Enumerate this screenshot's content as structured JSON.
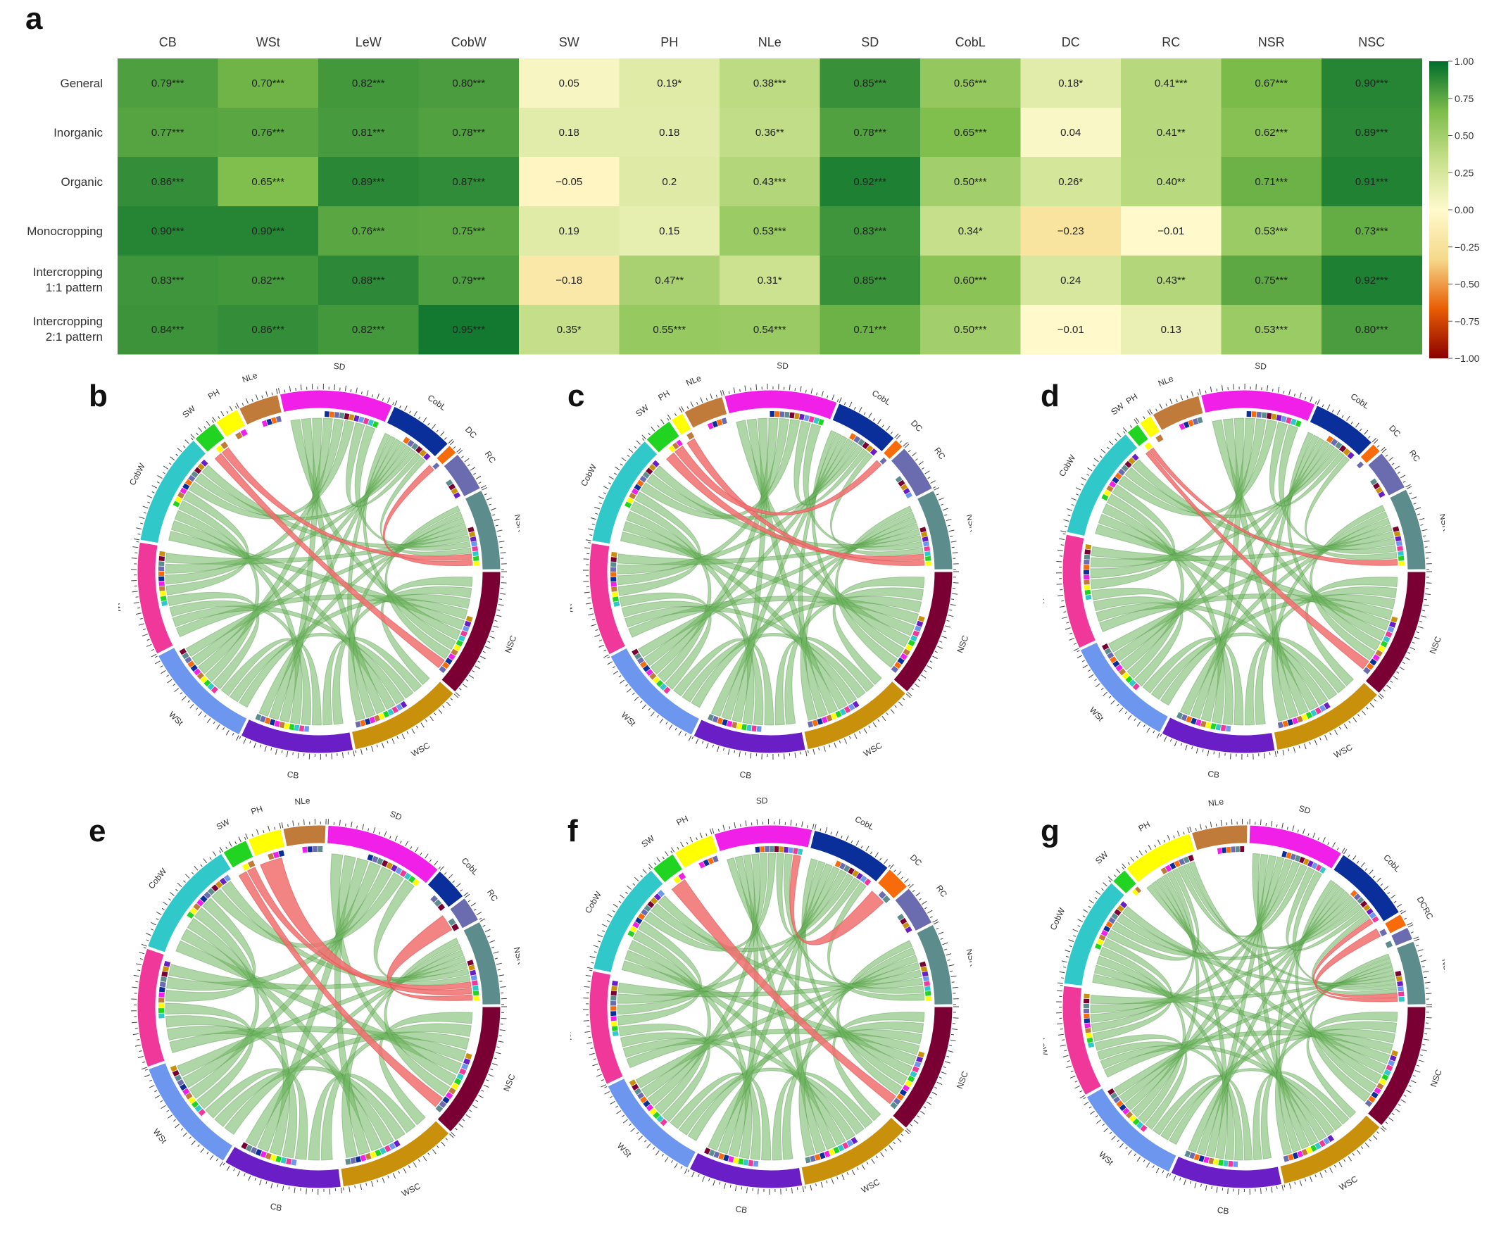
{
  "panel_labels": {
    "a": "a",
    "b": "b",
    "c": "c",
    "d": "d",
    "e": "e",
    "f": "f",
    "g": "g"
  },
  "chart_data": [
    {
      "type": "heatmap",
      "panel": "a",
      "title": "",
      "columns": [
        "CB",
        "WSt",
        "LeW",
        "CobW",
        "SW",
        "PH",
        "NLe",
        "SD",
        "CobL",
        "DC",
        "RC",
        "NSR",
        "NSC"
      ],
      "rows": [
        {
          "label": [
            "General"
          ],
          "values": [
            0.79,
            0.7,
            0.82,
            0.8,
            0.05,
            0.19,
            0.38,
            0.85,
            0.56,
            0.18,
            0.41,
            0.67,
            0.9
          ],
          "text": [
            "0.79***",
            "0.70***",
            "0.82***",
            "0.80***",
            "0.05",
            "0.19*",
            "0.38***",
            "0.85***",
            "0.56***",
            "0.18*",
            "0.41***",
            "0.67***",
            "0.90***"
          ]
        },
        {
          "label": [
            "Inorganic"
          ],
          "values": [
            0.77,
            0.76,
            0.81,
            0.78,
            0.18,
            0.18,
            0.36,
            0.78,
            0.65,
            0.04,
            0.41,
            0.62,
            0.89
          ],
          "text": [
            "0.77***",
            "0.76***",
            "0.81***",
            "0.78***",
            "0.18",
            "0.18",
            "0.36**",
            "0.78***",
            "0.65***",
            "0.04",
            "0.41**",
            "0.62***",
            "0.89***"
          ]
        },
        {
          "label": [
            "Organic"
          ],
          "values": [
            0.86,
            0.65,
            0.89,
            0.87,
            -0.05,
            0.2,
            0.43,
            0.92,
            0.5,
            0.26,
            0.4,
            0.71,
            0.91
          ],
          "text": [
            "0.86***",
            "0.65***",
            "0.89***",
            "0.87***",
            "−0.05",
            "0.2",
            "0.43***",
            "0.92***",
            "0.50***",
            "0.26*",
            "0.40**",
            "0.71***",
            "0.91***"
          ]
        },
        {
          "label": [
            "Monocropping"
          ],
          "values": [
            0.9,
            0.9,
            0.76,
            0.75,
            0.19,
            0.15,
            0.53,
            0.83,
            0.34,
            -0.23,
            -0.01,
            0.53,
            0.73
          ],
          "text": [
            "0.90***",
            "0.90***",
            "0.76***",
            "0.75***",
            "0.19",
            "0.15",
            "0.53***",
            "0.83***",
            "0.34*",
            "−0.23",
            "−0.01",
            "0.53***",
            "0.73***"
          ]
        },
        {
          "label": [
            "Intercropping",
            "1:1 pattern"
          ],
          "values": [
            0.83,
            0.82,
            0.88,
            0.79,
            -0.18,
            0.47,
            0.31,
            0.85,
            0.6,
            0.24,
            0.43,
            0.75,
            0.92
          ],
          "text": [
            "0.83***",
            "0.82***",
            "0.88***",
            "0.79***",
            "−0.18",
            "0.47**",
            "0.31*",
            "0.85***",
            "0.60***",
            "0.24",
            "0.43**",
            "0.75***",
            "0.92***"
          ]
        },
        {
          "label": [
            "Intercropping",
            "2:1 pattern"
          ],
          "values": [
            0.84,
            0.86,
            0.82,
            0.95,
            0.35,
            0.55,
            0.54,
            0.71,
            0.5,
            -0.01,
            0.13,
            0.53,
            0.8
          ],
          "text": [
            "0.84***",
            "0.86***",
            "0.82***",
            "0.95***",
            "0.35*",
            "0.55***",
            "0.54***",
            "0.71***",
            "0.50***",
            "−0.01",
            "0.13",
            "0.53***",
            "0.80***"
          ]
        }
      ],
      "colorbar": {
        "range": [
          -1,
          1
        ],
        "ticks": [
          1.0,
          0.75,
          0.5,
          0.25,
          0.0,
          -0.25,
          -0.5,
          -0.75,
          -1.0
        ],
        "tick_labels": [
          "1.00",
          "0.75",
          "0.50",
          "0.25",
          "0.00",
          "−0.25",
          "−0.50",
          "−0.75",
          "−1.00"
        ],
        "colors": [
          "#8b0000",
          "#e85d04",
          "#f5d98b",
          "#fffacd",
          "#c8e08c",
          "#7cbc4a",
          "#006d2c"
        ]
      }
    },
    {
      "type": "chord",
      "panel": "b",
      "sectors": [
        {
          "name": "NSC",
          "size": 8,
          "color": "#7a0033"
        },
        {
          "name": "WSC",
          "size": 7,
          "color": "#c9900c"
        },
        {
          "name": "CB",
          "size": 7,
          "color": "#6a1fc6"
        },
        {
          "name": "WSt",
          "size": 7,
          "color": "#6d97ee"
        },
        {
          "name": "LeW",
          "size": 7,
          "color": "#f0389a"
        },
        {
          "name": "CobW",
          "size": 7,
          "color": "#30c8c8"
        },
        {
          "name": "SW",
          "size": 1.5,
          "color": "#22d422"
        },
        {
          "name": "PH",
          "size": 1.5,
          "color": "#ffff00"
        },
        {
          "name": "NLe",
          "size": 2.5,
          "color": "#c07a3a"
        },
        {
          "name": "SD",
          "size": 7,
          "color": "#f020e8"
        },
        {
          "name": "CobL",
          "size": 4,
          "color": "#0a2f9a"
        },
        {
          "name": "DC",
          "size": 0.6,
          "color": "#f76b0a"
        },
        {
          "name": "RC",
          "size": 2.5,
          "color": "#6b6bb0"
        },
        {
          "name": "NSR",
          "size": 5,
          "color": "#5c8c8c"
        }
      ],
      "negative_links": [
        [
          "SW",
          "NSC"
        ],
        [
          "SW",
          "NSR"
        ],
        [
          "DC",
          "NSR"
        ]
      ]
    },
    {
      "type": "chord",
      "panel": "c",
      "sectors": [
        {
          "name": "NSC",
          "size": 8,
          "color": "#7a0033"
        },
        {
          "name": "WSC",
          "size": 7,
          "color": "#c9900c"
        },
        {
          "name": "CB",
          "size": 7,
          "color": "#6a1fc6"
        },
        {
          "name": "WSt",
          "size": 7,
          "color": "#6d97ee"
        },
        {
          "name": "LeW",
          "size": 7,
          "color": "#f0389a"
        },
        {
          "name": "CobW",
          "size": 7,
          "color": "#30c8c8"
        },
        {
          "name": "SW",
          "size": 1.8,
          "color": "#22d422"
        },
        {
          "name": "PH",
          "size": 0.8,
          "color": "#ffff00"
        },
        {
          "name": "NLe",
          "size": 2.5,
          "color": "#c07a3a"
        },
        {
          "name": "SD",
          "size": 7,
          "color": "#f020e8"
        },
        {
          "name": "CobL",
          "size": 4,
          "color": "#0a2f9a"
        },
        {
          "name": "DC",
          "size": 0.6,
          "color": "#f76b0a"
        },
        {
          "name": "RC",
          "size": 3,
          "color": "#6b6bb0"
        },
        {
          "name": "NSR",
          "size": 5,
          "color": "#5c8c8c"
        }
      ],
      "negative_links": [
        [
          "SW",
          "NSR"
        ],
        [
          "PH",
          "NSR"
        ],
        [
          "DC",
          "SW"
        ]
      ]
    },
    {
      "type": "chord",
      "panel": "d",
      "sectors": [
        {
          "name": "NSC",
          "size": 8,
          "color": "#7a0033"
        },
        {
          "name": "WSC",
          "size": 7,
          "color": "#c9900c"
        },
        {
          "name": "CB",
          "size": 7,
          "color": "#6a1fc6"
        },
        {
          "name": "WSt",
          "size": 7,
          "color": "#6d97ee"
        },
        {
          "name": "LeW",
          "size": 7,
          "color": "#f0389a"
        },
        {
          "name": "CobW",
          "size": 7,
          "color": "#30c8c8"
        },
        {
          "name": "SW",
          "size": 0.8,
          "color": "#22d422"
        },
        {
          "name": "PH",
          "size": 0.8,
          "color": "#ffff00"
        },
        {
          "name": "NLe",
          "size": 3,
          "color": "#c07a3a"
        },
        {
          "name": "SD",
          "size": 7,
          "color": "#f020e8"
        },
        {
          "name": "CobL",
          "size": 4,
          "color": "#0a2f9a"
        },
        {
          "name": "DC",
          "size": 0.6,
          "color": "#f76b0a"
        },
        {
          "name": "RC",
          "size": 2.5,
          "color": "#6b6bb0"
        },
        {
          "name": "NSR",
          "size": 5,
          "color": "#5c8c8c"
        }
      ],
      "negative_links": [
        [
          "SW",
          "NSC"
        ],
        [
          "SW",
          "NSR"
        ]
      ]
    },
    {
      "type": "chord",
      "panel": "e",
      "sectors": [
        {
          "name": "NSC",
          "size": 8,
          "color": "#7a0033"
        },
        {
          "name": "WSC",
          "size": 7,
          "color": "#c9900c"
        },
        {
          "name": "CB",
          "size": 7,
          "color": "#6a1fc6"
        },
        {
          "name": "WSt",
          "size": 7,
          "color": "#6d97ee"
        },
        {
          "name": "LeW",
          "size": 7,
          "color": "#f0389a"
        },
        {
          "name": "CobW",
          "size": 7,
          "color": "#30c8c8"
        },
        {
          "name": "SW",
          "size": 1.5,
          "color": "#22d422"
        },
        {
          "name": "PH",
          "size": 2,
          "color": "#ffff00"
        },
        {
          "name": "NLe",
          "size": 2.5,
          "color": "#c07a3a"
        },
        {
          "name": "SD",
          "size": 7,
          "color": "#f020e8"
        },
        {
          "name": "CobL",
          "size": 2,
          "color": "#0a2f9a"
        },
        {
          "name": "RC",
          "size": 1.5,
          "color": "#6b6bb0"
        },
        {
          "name": "NSR",
          "size": 5,
          "color": "#5c8c8c"
        }
      ],
      "negative_links": [
        [
          "SW",
          "NSC"
        ],
        [
          "SW",
          "NSR"
        ],
        [
          "PH",
          "NSR"
        ],
        [
          "RC",
          "NSR"
        ]
      ]
    },
    {
      "type": "chord",
      "panel": "f",
      "sectors": [
        {
          "name": "NSC",
          "size": 8,
          "color": "#7a0033"
        },
        {
          "name": "WSC",
          "size": 7,
          "color": "#c9900c"
        },
        {
          "name": "CB",
          "size": 7,
          "color": "#6a1fc6"
        },
        {
          "name": "WSt",
          "size": 7,
          "color": "#6d97ee"
        },
        {
          "name": "LeW",
          "size": 7,
          "color": "#f0389a"
        },
        {
          "name": "CobW",
          "size": 7,
          "color": "#30c8c8"
        },
        {
          "name": "SW",
          "size": 1.5,
          "color": "#22d422"
        },
        {
          "name": "PH",
          "size": 2.5,
          "color": "#ffff00"
        },
        {
          "name": "SD",
          "size": 6,
          "color": "#f020e8"
        },
        {
          "name": "CobL",
          "size": 5,
          "color": "#0a2f9a"
        },
        {
          "name": "DC",
          "size": 1.5,
          "color": "#f76b0a"
        },
        {
          "name": "RC",
          "size": 2.5,
          "color": "#6b6bb0"
        },
        {
          "name": "NSR",
          "size": 5,
          "color": "#5c8c8c"
        }
      ],
      "negative_links": [
        [
          "SW",
          "NSC"
        ],
        [
          "DC",
          "SD"
        ]
      ]
    },
    {
      "type": "chord",
      "panel": "g",
      "sectors": [
        {
          "name": "NSC",
          "size": 8,
          "color": "#7a0033"
        },
        {
          "name": "WSC",
          "size": 7,
          "color": "#c9900c"
        },
        {
          "name": "CB",
          "size": 7,
          "color": "#6a1fc6"
        },
        {
          "name": "WSt",
          "size": 7,
          "color": "#6d97ee"
        },
        {
          "name": "LeW",
          "size": 7,
          "color": "#f0389a"
        },
        {
          "name": "CobW",
          "size": 7,
          "color": "#30c8c8"
        },
        {
          "name": "SW",
          "size": 1,
          "color": "#22d422"
        },
        {
          "name": "PH",
          "size": 4.5,
          "color": "#ffff00"
        },
        {
          "name": "NLe",
          "size": 3.5,
          "color": "#c07a3a"
        },
        {
          "name": "SD",
          "size": 6,
          "color": "#f020e8"
        },
        {
          "name": "CobL",
          "size": 5,
          "color": "#0a2f9a"
        },
        {
          "name": "DCRC",
          "size": 0.8,
          "color": "#f76b0a"
        },
        {
          "name": "",
          "size": 0.8,
          "color": "#6b6bb0"
        },
        {
          "name": "NSR",
          "size": 4,
          "color": "#5c8c8c"
        }
      ],
      "negative_links": [
        [
          "CobL",
          "NSR"
        ],
        [
          "DCRC",
          "NSR"
        ]
      ]
    }
  ]
}
